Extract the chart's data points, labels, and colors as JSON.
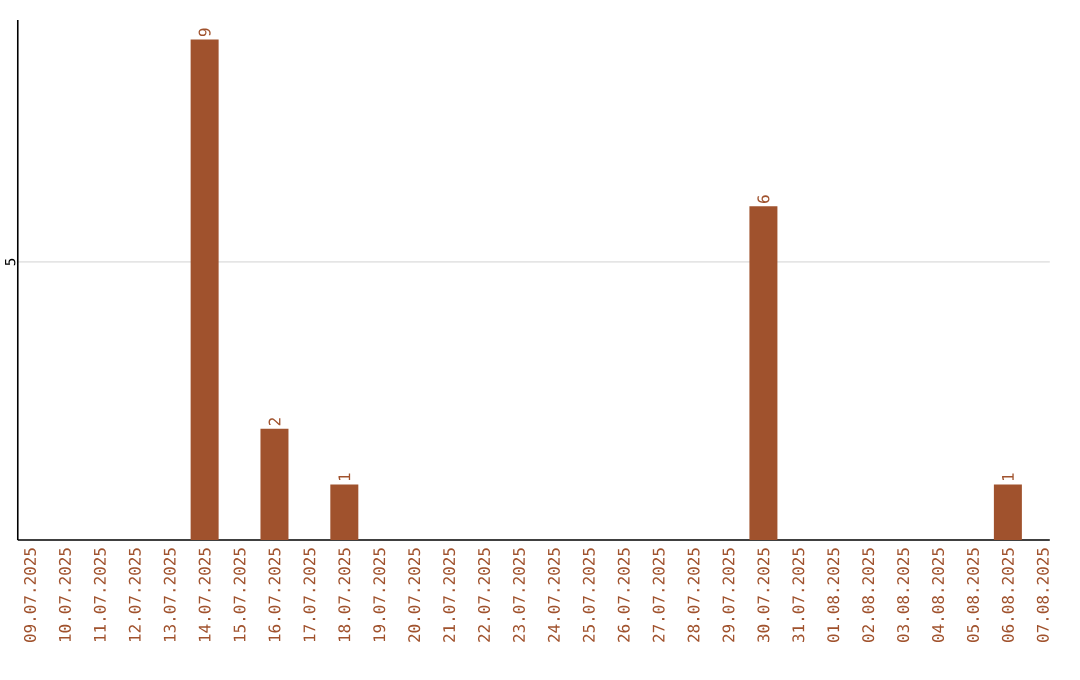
{
  "chart_data": {
    "type": "bar",
    "categories": [
      "09.07.2025",
      "10.07.2025",
      "11.07.2025",
      "12.07.2025",
      "13.07.2025",
      "14.07.2025",
      "15.07.2025",
      "16.07.2025",
      "17.07.2025",
      "18.07.2025",
      "19.07.2025",
      "20.07.2025",
      "21.07.2025",
      "22.07.2025",
      "23.07.2025",
      "24.07.2025",
      "25.07.2025",
      "26.07.2025",
      "27.07.2025",
      "28.07.2025",
      "29.07.2025",
      "30.07.2025",
      "31.07.2025",
      "01.08.2025",
      "02.08.2025",
      "03.08.2025",
      "04.08.2025",
      "05.08.2025",
      "06.08.2025",
      "07.08.2025"
    ],
    "values": [
      0,
      0,
      0,
      0,
      0,
      9,
      0,
      2,
      0,
      1,
      0,
      0,
      0,
      0,
      0,
      0,
      0,
      0,
      0,
      0,
      0,
      6,
      0,
      0,
      0,
      0,
      0,
      0,
      1,
      0
    ],
    "value_labels": [
      null,
      null,
      null,
      null,
      null,
      "9",
      null,
      "2",
      null,
      "1",
      null,
      null,
      null,
      null,
      null,
      null,
      null,
      null,
      null,
      null,
      null,
      "6",
      null,
      null,
      null,
      null,
      null,
      null,
      "1",
      null
    ],
    "color": "#a0522d",
    "ylim": [
      0,
      9.35
    ],
    "yticks": [
      5
    ],
    "grid": "y"
  }
}
